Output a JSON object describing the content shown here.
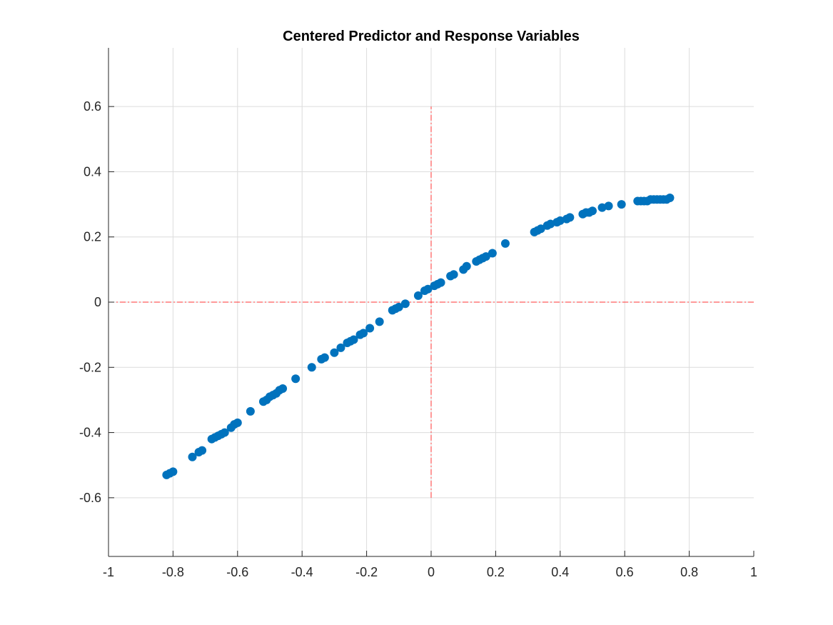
{
  "chart_data": {
    "type": "scatter",
    "title": "Centered Predictor and Response Variables",
    "xlabel": "",
    "ylabel": "",
    "xlim": [
      -1,
      1
    ],
    "ylim": [
      -0.78,
      0.78
    ],
    "xticks": [
      -1,
      -0.8,
      -0.6,
      -0.4,
      -0.2,
      0,
      0.2,
      0.4,
      0.6,
      0.8,
      1
    ],
    "xtick_labels": [
      "-1",
      "-0.8",
      "-0.6",
      "-0.4",
      "-0.2",
      "0",
      "0.2",
      "0.4",
      "0.6",
      "0.8",
      "1"
    ],
    "yticks": [
      -0.6,
      -0.4,
      -0.2,
      0,
      0.2,
      0.4,
      0.6
    ],
    "ytick_labels": [
      "-0.6",
      "-0.4",
      "-0.2",
      "0",
      "0.2",
      "0.4",
      "0.6"
    ],
    "grid": true,
    "marker_color": "#0072BD",
    "reference_color": "#FF3333",
    "reference_lines": [
      {
        "orientation": "horizontal",
        "y": 0,
        "x_range": [
          -1,
          1
        ]
      },
      {
        "orientation": "vertical",
        "x": 0,
        "y_range": [
          -0.6,
          0.6
        ]
      }
    ],
    "series": [
      {
        "x": [
          -0.82,
          -0.81,
          -0.8,
          -0.74,
          -0.72,
          -0.71,
          -0.68,
          -0.67,
          -0.66,
          -0.65,
          -0.64,
          -0.62,
          -0.61,
          -0.6,
          -0.56,
          -0.52,
          -0.51,
          -0.5,
          -0.49,
          -0.48,
          -0.47,
          -0.46,
          -0.42,
          -0.37,
          -0.34,
          -0.33,
          -0.3,
          -0.28,
          -0.26,
          -0.25,
          -0.24,
          -0.22,
          -0.21,
          -0.19,
          -0.16,
          -0.12,
          -0.11,
          -0.1,
          -0.08,
          -0.04,
          -0.02,
          -0.01,
          0.01,
          0.02,
          0.03,
          0.06,
          0.07,
          0.1,
          0.11,
          0.14,
          0.15,
          0.16,
          0.17,
          0.19,
          0.23,
          0.32,
          0.33,
          0.34,
          0.36,
          0.37,
          0.39,
          0.4,
          0.42,
          0.43,
          0.47,
          0.48,
          0.49,
          0.5,
          0.53,
          0.55,
          0.59,
          0.64,
          0.65,
          0.66,
          0.67,
          0.68,
          0.69,
          0.7,
          0.71,
          0.72,
          0.73,
          0.74
        ],
        "y": [
          -0.53,
          -0.525,
          -0.52,
          -0.475,
          -0.46,
          -0.455,
          -0.42,
          -0.415,
          -0.41,
          -0.405,
          -0.4,
          -0.385,
          -0.375,
          -0.37,
          -0.335,
          -0.305,
          -0.3,
          -0.29,
          -0.285,
          -0.28,
          -0.27,
          -0.265,
          -0.235,
          -0.2,
          -0.175,
          -0.17,
          -0.155,
          -0.14,
          -0.125,
          -0.12,
          -0.115,
          -0.1,
          -0.095,
          -0.08,
          -0.06,
          -0.025,
          -0.02,
          -0.015,
          -0.005,
          0.02,
          0.035,
          0.04,
          0.05,
          0.055,
          0.06,
          0.08,
          0.085,
          0.1,
          0.11,
          0.125,
          0.13,
          0.135,
          0.14,
          0.15,
          0.18,
          0.215,
          0.22,
          0.225,
          0.235,
          0.24,
          0.245,
          0.25,
          0.255,
          0.26,
          0.27,
          0.275,
          0.275,
          0.28,
          0.29,
          0.295,
          0.3,
          0.31,
          0.31,
          0.31,
          0.31,
          0.315,
          0.315,
          0.315,
          0.315,
          0.315,
          0.315,
          0.32
        ]
      }
    ]
  }
}
